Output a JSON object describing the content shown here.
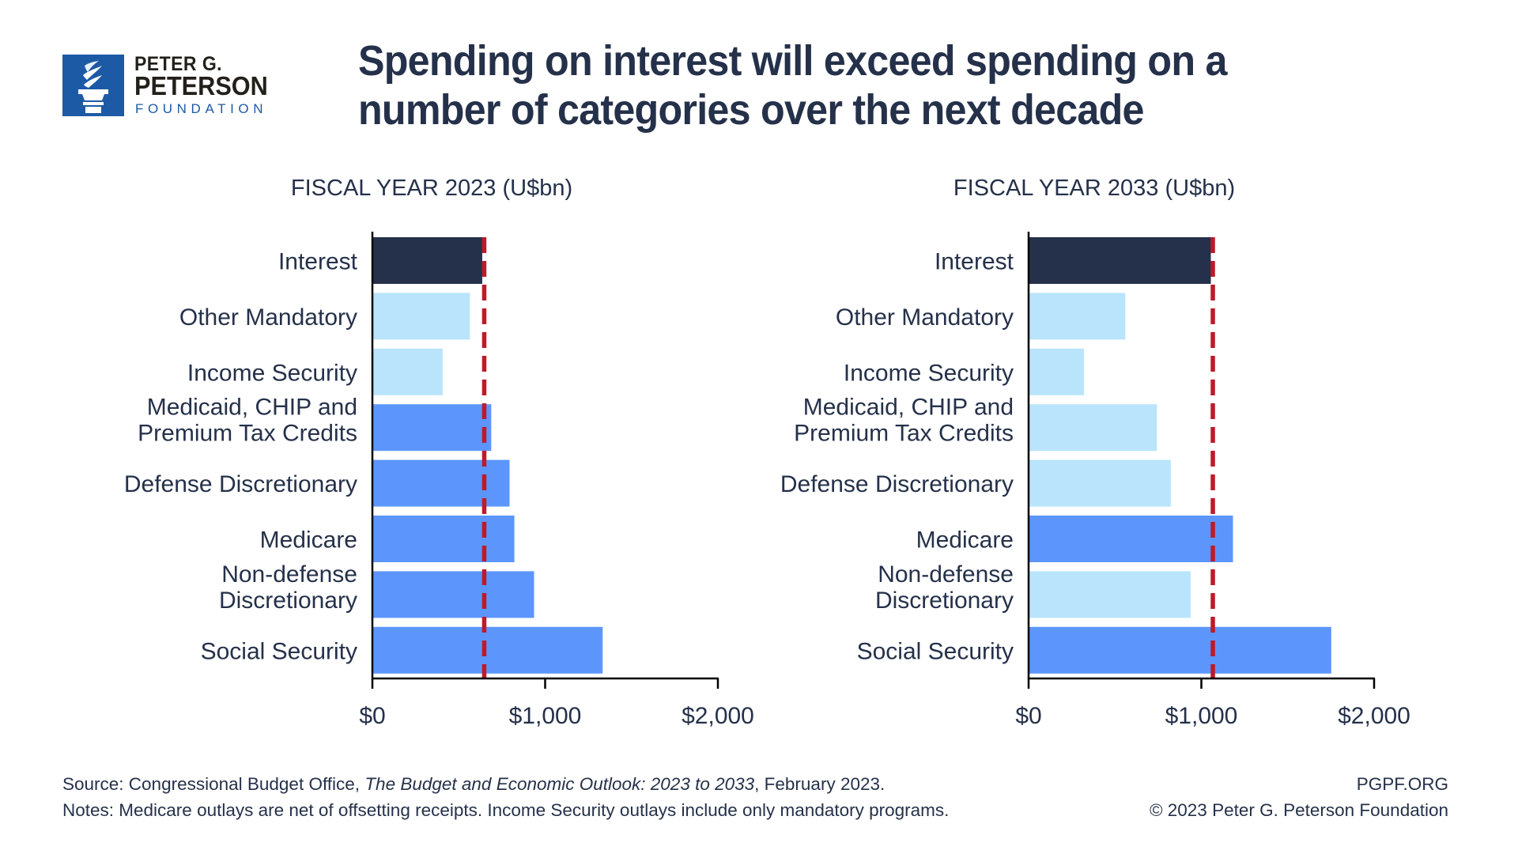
{
  "logo": {
    "line1": "PETER G.",
    "line2": "PETERSON",
    "line3": "FOUNDATION",
    "icon": "torch-icon",
    "brand_color": "#1d5aa6"
  },
  "title": "Spending on interest will exceed spending on a number of categories over the next decade",
  "colors": {
    "interest": "#25314a",
    "above_interest": "#5c96fd",
    "below_interest": "#b9e4fc",
    "interest_line": "#be1a2a",
    "axis": "#000000",
    "text": "#25314a"
  },
  "chart_data": [
    {
      "type": "bar",
      "orientation": "horizontal",
      "title": "FISCAL YEAR 2023 (U$bn)",
      "categories": [
        "Interest",
        "Other Mandatory",
        "Income Security",
        "Medicaid, CHIP and|Premium Tax Credits",
        "Defense Discretionary",
        "Medicare",
        "Non-defense|Discretionary",
        "Social Security"
      ],
      "values": [
        636,
        564,
        407,
        688,
        794,
        822,
        936,
        1333
      ],
      "bar_class": [
        "interest",
        "below",
        "below",
        "above",
        "above",
        "above",
        "above",
        "above"
      ],
      "reference_line": {
        "label": "Interest level",
        "value": 636,
        "style": "dashed"
      },
      "xlabel": "",
      "ylabel": "",
      "xlim": [
        0,
        2000
      ],
      "xticks": [
        0,
        1000,
        2000
      ],
      "xtick_labels": [
        "$0",
        "$1,000",
        "$2,000"
      ],
      "grid": false,
      "unit": "US$ billions"
    },
    {
      "type": "bar",
      "orientation": "horizontal",
      "title": "FISCAL YEAR 2033 (U$bn)",
      "categories": [
        "Interest",
        "Other Mandatory",
        "Income Security",
        "Medicaid, CHIP and|Premium Tax Credits",
        "Defense Discretionary",
        "Medicare",
        "Non-defense|Discretionary",
        "Social Security"
      ],
      "values": [
        1055,
        560,
        321,
        743,
        823,
        1183,
        938,
        1752
      ],
      "bar_class": [
        "interest",
        "below",
        "below",
        "below",
        "below",
        "above",
        "below",
        "above"
      ],
      "reference_line": {
        "label": "Interest level",
        "value": 1055,
        "style": "dashed"
      },
      "xlabel": "",
      "ylabel": "",
      "xlim": [
        0,
        2000
      ],
      "xticks": [
        0,
        1000,
        2000
      ],
      "xtick_labels": [
        "$0",
        "$1,000",
        "$2,000"
      ],
      "grid": false,
      "unit": "US$ billions"
    }
  ],
  "footer": {
    "source_prefix": "Source: Congressional Budget Office, ",
    "source_italic": "The Budget and Economic Outlook: 2023 to 2033",
    "source_suffix": ", February 2023.",
    "notes": "Notes: Medicare outlays are net of offsetting receipts. Income Security outlays include only mandatory programs.",
    "site": "PGPF.ORG",
    "copyright": "© 2023 Peter G. Peterson Foundation"
  }
}
